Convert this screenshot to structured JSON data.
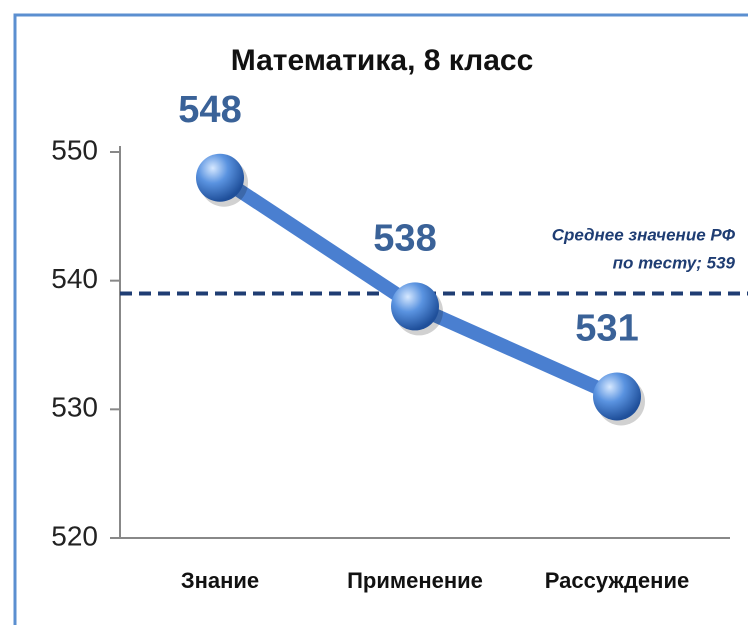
{
  "chart_data": {
    "type": "line",
    "title": "Математика, 8 класс",
    "categories": [
      "Знание",
      "Применение",
      "Рассуждение"
    ],
    "series": [
      {
        "name": "Математика, 8 класс",
        "color": "#4a7fd0",
        "values": [
          548,
          538,
          531
        ]
      }
    ],
    "ylim": [
      520,
      550
    ],
    "yticks": [
      520,
      530,
      540,
      550
    ],
    "grid": false,
    "reference_line": {
      "value": 539,
      "color": "#1f3d73",
      "label": [
        "Среднее  значение РФ",
        "по тесту; 539"
      ]
    }
  }
}
